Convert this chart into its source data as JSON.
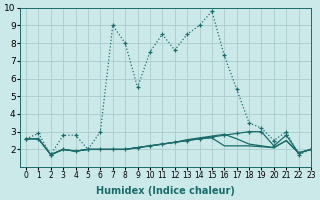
{
  "xlabel": "Humidex (Indice chaleur)",
  "xlim": [
    -0.5,
    23
  ],
  "ylim": [
    1,
    10
  ],
  "yticks": [
    2,
    3,
    4,
    5,
    6,
    7,
    8,
    9,
    10
  ],
  "xticks": [
    0,
    1,
    2,
    3,
    4,
    5,
    6,
    7,
    8,
    9,
    10,
    11,
    12,
    13,
    14,
    15,
    16,
    17,
    18,
    19,
    20,
    21,
    22,
    23
  ],
  "bg_color": "#cce9e9",
  "grid_color": "#aacccc",
  "line_color": "#1a6b6b",
  "series": [
    {
      "x": [
        0,
        1,
        2,
        3,
        4,
        5,
        6,
        7,
        8,
        9,
        10,
        11,
        12,
        13,
        14,
        15,
        16,
        17,
        18,
        19,
        20,
        21,
        22,
        23
      ],
      "y": [
        2.6,
        2.9,
        1.7,
        2.8,
        2.8,
        2.0,
        3.0,
        9.0,
        8.0,
        5.5,
        7.5,
        8.5,
        7.6,
        8.5,
        9.0,
        9.8,
        7.3,
        5.4,
        3.5,
        3.2,
        2.5,
        3.0,
        1.7,
        2.0
      ],
      "style": "dotted",
      "marker": "+"
    },
    {
      "x": [
        0,
        1,
        2,
        3,
        4,
        5,
        6,
        7,
        8,
        9,
        10,
        11,
        12,
        13,
        14,
        15,
        16,
        17,
        18,
        19,
        20,
        21,
        22,
        23
      ],
      "y": [
        2.6,
        2.6,
        1.7,
        2.0,
        1.9,
        2.0,
        2.0,
        2.0,
        2.0,
        2.1,
        2.2,
        2.3,
        2.4,
        2.5,
        2.6,
        2.7,
        2.8,
        2.9,
        3.0,
        3.0,
        2.2,
        2.8,
        1.8,
        2.0
      ],
      "style": "solid",
      "marker": "+"
    },
    {
      "x": [
        0,
        1,
        2,
        3,
        4,
        5,
        6,
        7,
        8,
        9,
        10,
        11,
        12,
        13,
        14,
        15,
        16,
        17,
        18,
        19,
        20,
        21,
        22,
        23
      ],
      "y": [
        2.6,
        2.6,
        1.7,
        2.0,
        1.9,
        2.0,
        2.0,
        2.0,
        2.0,
        2.1,
        2.2,
        2.3,
        2.4,
        2.55,
        2.65,
        2.75,
        2.85,
        2.6,
        2.3,
        2.2,
        2.1,
        2.5,
        1.8,
        2.0
      ],
      "style": "solid",
      "marker": null
    },
    {
      "x": [
        0,
        1,
        2,
        3,
        4,
        5,
        6,
        7,
        8,
        9,
        10,
        11,
        12,
        13,
        14,
        15,
        16,
        17,
        18,
        19,
        20,
        21,
        22,
        23
      ],
      "y": [
        2.6,
        2.6,
        1.7,
        2.0,
        1.9,
        2.0,
        2.0,
        2.0,
        2.0,
        2.1,
        2.2,
        2.3,
        2.4,
        2.5,
        2.6,
        2.65,
        2.2,
        2.2,
        2.2,
        2.15,
        2.1,
        2.5,
        1.8,
        2.0
      ],
      "style": "solid",
      "marker": null
    }
  ]
}
